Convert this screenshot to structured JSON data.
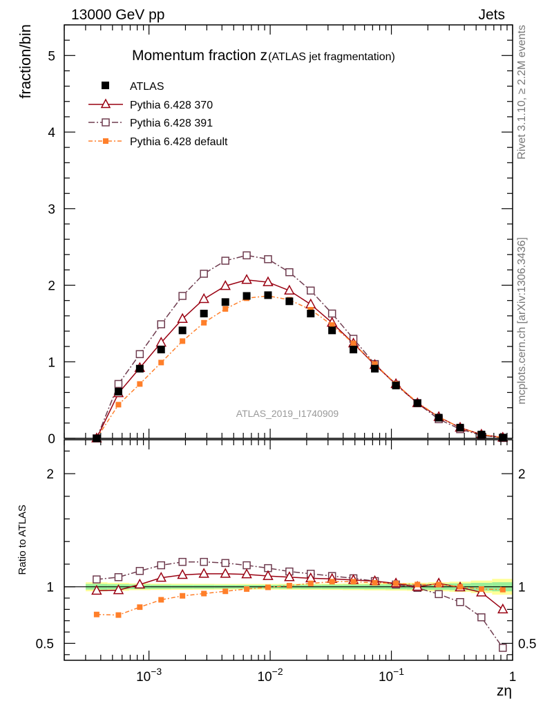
{
  "header": {
    "left": "13000 GeV pp",
    "right": "Jets"
  },
  "side_labels": {
    "rivet": "Rivet 3.1.10, ≥ 2.2M events",
    "mcplots": "mcplots.cern.ch [arXiv:1306.3436]"
  },
  "colors": {
    "atlas": "#000000",
    "p370": "#990011",
    "p391": "#6e3b4e",
    "pdef": "#ff7f2a",
    "band_outer": "#ffff99",
    "band_inner": "#99ee99",
    "ref_line": "#000000"
  },
  "chart_data": {
    "type": "line",
    "title": "Momentum fraction z",
    "title_sub": "(ATLAS jet fragmentation)",
    "analysis_id": "ATLAS_2019_I1740909",
    "xlabel": "zη",
    "ylabel": "fraction/bin",
    "ratio_ylabel": "Ratio to ATLAS",
    "xscale": "log",
    "xlim": [
      0.0002,
      1.0
    ],
    "ylim": [
      0,
      5.4
    ],
    "ratio_ylim": [
      0.35,
      2.3
    ],
    "x_ticks": [
      {
        "v": 0.001,
        "label": "10",
        "exp": "−3"
      },
      {
        "v": 0.01,
        "label": "10",
        "exp": "−2"
      },
      {
        "v": 0.1,
        "label": "10",
        "exp": "−1"
      },
      {
        "v": 1.0,
        "label": "1",
        "exp": ""
      }
    ],
    "y_ticks": [
      {
        "v": 0,
        "label": "0"
      },
      {
        "v": 1,
        "label": "1"
      },
      {
        "v": 2,
        "label": "2"
      },
      {
        "v": 3,
        "label": "3"
      },
      {
        "v": 4,
        "label": "4"
      },
      {
        "v": 5,
        "label": "5"
      }
    ],
    "ratio_ticks": [
      {
        "v": 0.5,
        "label": "0.5"
      },
      {
        "v": 1,
        "label": "1"
      },
      {
        "v": 2,
        "label": "2"
      }
    ],
    "legend": [
      "ATLAS",
      "Pythia 6.428 370",
      "Pythia 6.428 391",
      "Pythia 6.428 default"
    ],
    "x": [
      0.00037,
      0.00056,
      0.00084,
      0.00126,
      0.00189,
      0.00284,
      0.00427,
      0.0064,
      0.0096,
      0.0144,
      0.0216,
      0.0324,
      0.0486,
      0.073,
      0.109,
      0.164,
      0.246,
      0.369,
      0.553,
      0.83
    ],
    "series": [
      {
        "name": "ATLAS",
        "values": [
          0.0,
          0.61,
          0.91,
          1.16,
          1.41,
          1.63,
          1.78,
          1.86,
          1.87,
          1.79,
          1.63,
          1.41,
          1.16,
          0.91,
          0.69,
          0.46,
          0.27,
          0.14,
          0.05,
          0.01
        ],
        "ratio": [
          1,
          1,
          1,
          1,
          1,
          1,
          1,
          1,
          1,
          1,
          1,
          1,
          1,
          1,
          1,
          1,
          1,
          1,
          1,
          1
        ]
      },
      {
        "name": "Pythia 6.428 370",
        "values": [
          0.0,
          0.59,
          0.92,
          1.25,
          1.56,
          1.82,
          1.99,
          2.07,
          2.04,
          1.93,
          1.75,
          1.51,
          1.24,
          0.96,
          0.71,
          0.46,
          0.28,
          0.14,
          0.05,
          0.01
        ],
        "ratio": [
          0.965,
          0.97,
          1.02,
          1.08,
          1.105,
          1.115,
          1.115,
          1.11,
          1.095,
          1.085,
          1.075,
          1.07,
          1.06,
          1.05,
          1.03,
          1.0,
          1.03,
          0.995,
          0.95,
          0.8
        ]
      },
      {
        "name": "Pythia 6.428 391",
        "values": [
          0.0,
          0.71,
          1.1,
          1.49,
          1.86,
          2.15,
          2.32,
          2.39,
          2.34,
          2.17,
          1.93,
          1.63,
          1.3,
          0.97,
          0.7,
          0.46,
          0.25,
          0.12,
          0.04,
          0.005
        ],
        "ratio": [
          1.065,
          1.085,
          1.14,
          1.19,
          1.22,
          1.22,
          1.21,
          1.19,
          1.165,
          1.135,
          1.115,
          1.095,
          1.075,
          1.05,
          1.02,
          0.99,
          0.935,
          0.865,
          0.73,
          0.46
        ]
      },
      {
        "name": "Pythia 6.428 default",
        "values": [
          0.0,
          0.44,
          0.71,
          0.99,
          1.27,
          1.51,
          1.69,
          1.83,
          1.86,
          1.81,
          1.68,
          1.48,
          1.24,
          0.97,
          0.71,
          0.47,
          0.28,
          0.14,
          0.05,
          0.01
        ],
        "ratio": [
          0.755,
          0.75,
          0.82,
          0.885,
          0.92,
          0.94,
          0.96,
          0.98,
          0.995,
          1.01,
          1.03,
          1.045,
          1.045,
          1.035,
          1.03,
          1.02,
          1.02,
          1.0,
          0.98,
          0.975
        ]
      }
    ]
  }
}
